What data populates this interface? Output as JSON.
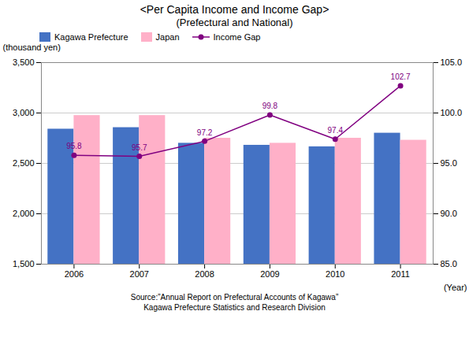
{
  "chart_data": {
    "type": "bar",
    "title": "<Per Capita Income and Income Gap>",
    "subtitle": "(Prefectural and National)",
    "xlabel": "(Year)",
    "ylabel": "(thousand yen)",
    "source": [
      "Source:”Annual Report on Prefectural Accounts of Kagawa”",
      "Kagawa Prefecture Statistics and Research Division"
    ],
    "categories": [
      "2006",
      "2007",
      "2008",
      "2009",
      "2010",
      "2011"
    ],
    "series": [
      {
        "name": "Kagawa Prefecture",
        "color": "#4472C4",
        "values": [
          2840,
          2855,
          2700,
          2680,
          2665,
          2800
        ]
      },
      {
        "name": "Japan",
        "color": "#FFB0C8",
        "values": [
          2975,
          2975,
          2750,
          2700,
          2750,
          2730
        ]
      },
      {
        "name": "Income Gap",
        "type": "line",
        "axis": "y2",
        "color": "#800080",
        "marker": "o",
        "data_labels": true,
        "values": [
          95.8,
          95.7,
          97.2,
          99.8,
          97.4,
          102.7
        ]
      }
    ],
    "ylim": [
      1500,
      3500
    ],
    "yticks": [
      {
        "value": 1500,
        "label": "1,500"
      },
      {
        "value": 2000,
        "label": "2,000"
      },
      {
        "value": 2500,
        "label": "2,500"
      },
      {
        "value": 3000,
        "label": "3,000"
      },
      {
        "value": 3500,
        "label": "3,500"
      }
    ],
    "y2lim": [
      85.0,
      105.0
    ],
    "y2ticks": [
      {
        "value": 85.0,
        "label": "85.0"
      },
      {
        "value": 90.0,
        "label": "90.0"
      },
      {
        "value": 95.0,
        "label": "95.0"
      },
      {
        "value": 100.0,
        "label": "100.0"
      },
      {
        "value": 105.0,
        "label": "105.0"
      }
    ],
    "grid": true,
    "legend": "upper left"
  }
}
